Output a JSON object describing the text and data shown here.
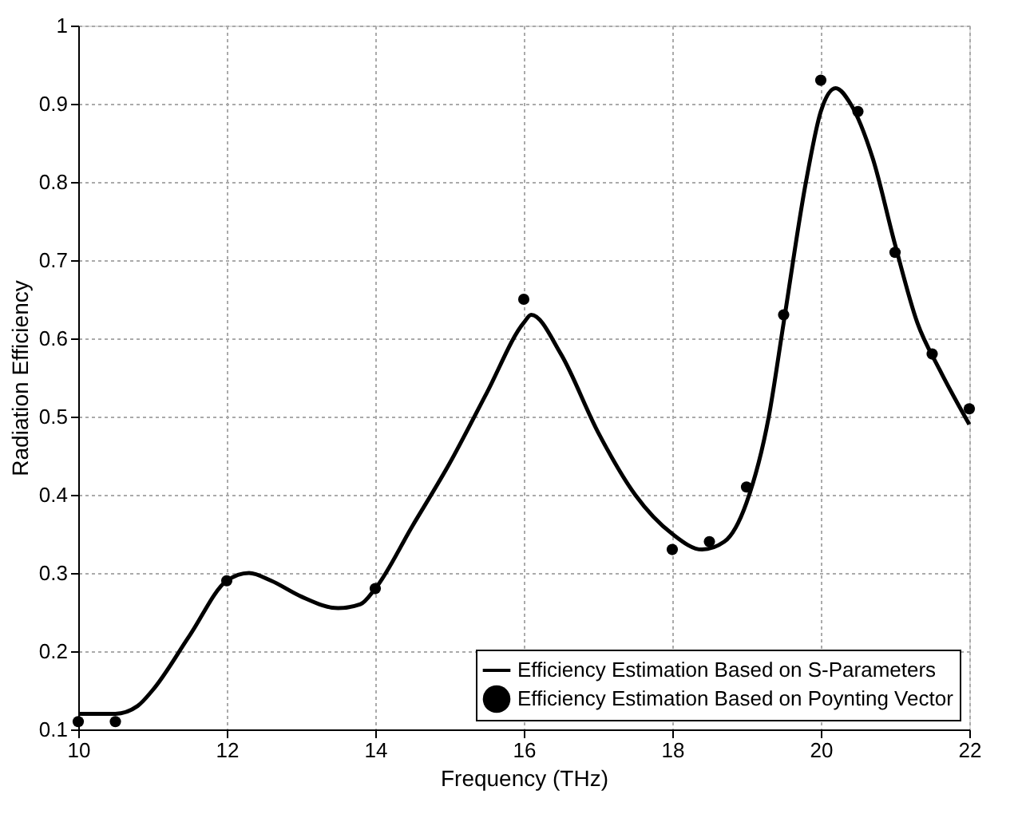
{
  "chart_data": {
    "type": "line",
    "xlabel": "Frequency (THz)",
    "ylabel": "Radiation Efficiency",
    "xlim": [
      10,
      22
    ],
    "ylim": [
      0.1,
      1
    ],
    "xticks": [
      10,
      12,
      14,
      16,
      18,
      20,
      22
    ],
    "yticks": [
      0.1,
      0.2,
      0.3,
      0.4,
      0.5,
      0.6,
      0.7,
      0.8,
      0.9,
      1
    ],
    "grid": true,
    "legend": "bottom right",
    "series": [
      {
        "name": "Efficiency Estimation Based on S-Parameters",
        "color": "#000000",
        "line_style": "solid",
        "marker": "none",
        "x": [
          10,
          10.5,
          10.8,
          11,
          11.5,
          12,
          12.3,
          12.6,
          13,
          13.5,
          13.8,
          14,
          14.5,
          15,
          15.5,
          16,
          16.1,
          16.5,
          17,
          17.5,
          18,
          18.4,
          18.7,
          19,
          19.3,
          19.5,
          19.8,
          20,
          20.2,
          20.4,
          20.7,
          21,
          21.3,
          21.6,
          22
        ],
        "values": [
          0.12,
          0.12,
          0.13,
          0.15,
          0.22,
          0.29,
          0.3,
          0.29,
          0.27,
          0.255,
          0.26,
          0.28,
          0.36,
          0.44,
          0.53,
          0.62,
          0.63,
          0.58,
          0.48,
          0.4,
          0.35,
          0.33,
          0.34,
          0.39,
          0.5,
          0.62,
          0.8,
          0.89,
          0.92,
          0.9,
          0.83,
          0.72,
          0.62,
          0.56,
          0.49
        ]
      },
      {
        "name": "Efficiency Estimation Based on Poynting Vector",
        "type": "scatter",
        "color": "#000000",
        "marker": "circle",
        "x": [
          10,
          10.5,
          12,
          14,
          16,
          18,
          18.5,
          19,
          19.5,
          20,
          20.5,
          21,
          21.5,
          22
        ],
        "values": [
          0.11,
          0.11,
          0.29,
          0.28,
          0.65,
          0.33,
          0.34,
          0.41,
          0.63,
          0.93,
          0.89,
          0.71,
          0.58,
          0.51
        ]
      }
    ]
  }
}
